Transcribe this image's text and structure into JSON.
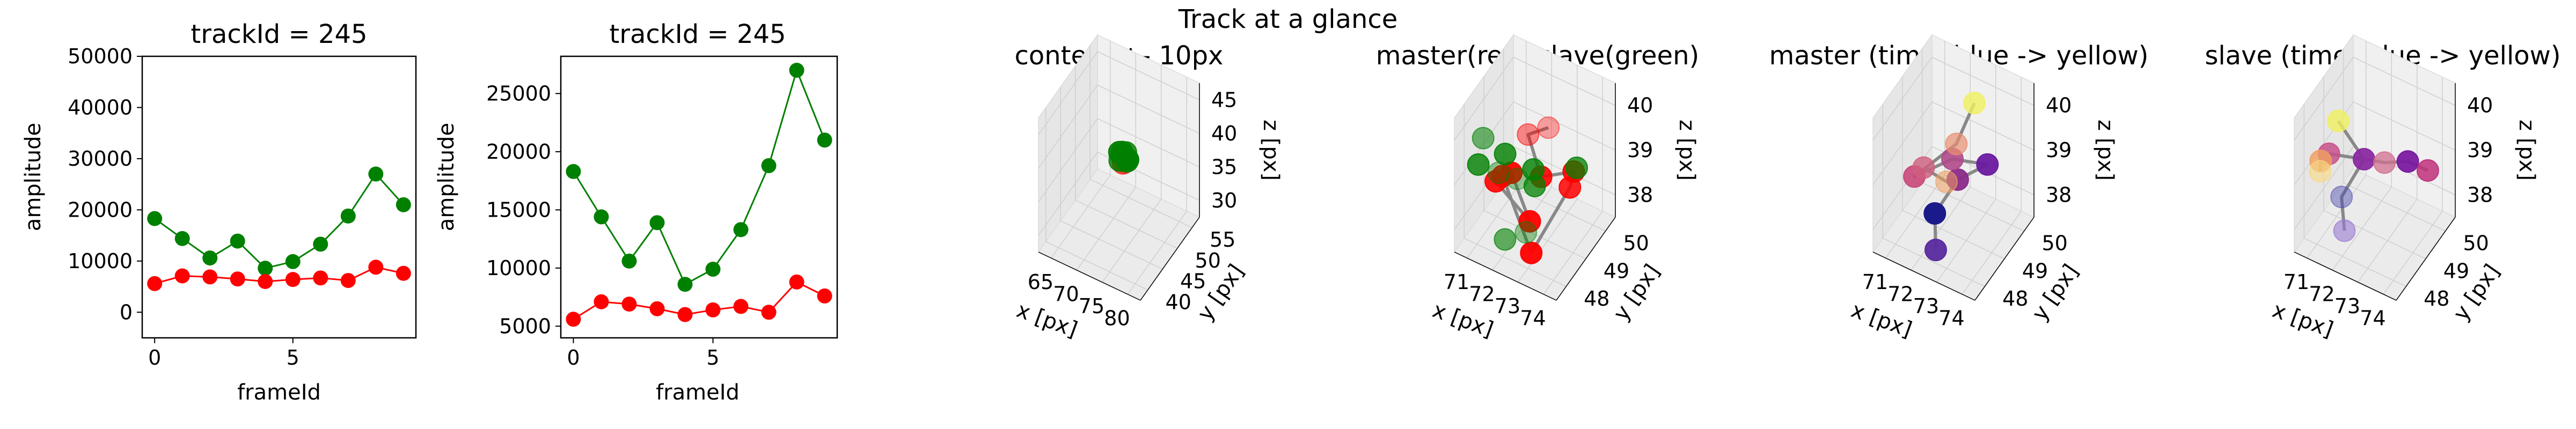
{
  "figure": {
    "suptitle": "Track at a glance"
  },
  "colors": {
    "master": "#ff0000",
    "slave": "#008000",
    "track_line": "#888888",
    "pane_back": "#f0f0f0",
    "pane_side": "#e6e6e6",
    "pane_floor": "#ebebeb"
  },
  "chart_data": [
    {
      "type": "line",
      "title": "trackId = 245",
      "xlabel": "frameId",
      "ylabel": "amplitude",
      "xlim": [
        -0.45,
        9.45
      ],
      "ylim": [
        -5000,
        50000
      ],
      "xticks": [
        0,
        5
      ],
      "yticks": [
        0,
        10000,
        20000,
        30000,
        40000,
        50000
      ],
      "x": [
        0,
        1,
        2,
        3,
        4,
        5,
        6,
        7,
        8,
        9
      ],
      "series": [
        {
          "color": "#008000",
          "values": [
            18300,
            14400,
            10600,
            13900,
            8600,
            9900,
            13300,
            18800,
            27000,
            21000
          ]
        },
        {
          "color": "#ff0000",
          "values": [
            5600,
            7100,
            6900,
            6500,
            6000,
            6400,
            6700,
            6200,
            8800,
            7600
          ]
        }
      ]
    },
    {
      "type": "line",
      "title": "trackId = 245",
      "xlabel": "frameId",
      "ylabel": "amplitude",
      "xlim": [
        -0.45,
        9.45
      ],
      "ylim": [
        4000,
        28200
      ],
      "xticks": [
        0,
        5
      ],
      "yticks": [
        5000,
        10000,
        15000,
        20000,
        25000
      ],
      "x": [
        0,
        1,
        2,
        3,
        4,
        5,
        6,
        7,
        8,
        9
      ],
      "series": [
        {
          "color": "#008000",
          "values": [
            18300,
            14400,
            10600,
            13900,
            8600,
            9900,
            13300,
            18800,
            27000,
            21000
          ]
        },
        {
          "color": "#ff0000",
          "values": [
            5600,
            7100,
            6900,
            6500,
            6000,
            6400,
            6700,
            6200,
            8800,
            7600
          ]
        }
      ]
    },
    {
      "type": "scatter3d",
      "title": "context +- 10px",
      "xlabel": "x [px]",
      "ylabel": "y [px]",
      "zlabel": "z [px]",
      "xlim": [
        62,
        82
      ],
      "ylim": [
        38,
        58
      ],
      "zlim": [
        28,
        48
      ],
      "xticks": [
        "65",
        "70",
        "75",
        "80"
      ],
      "yticks": [
        "40",
        "45",
        "50",
        "55"
      ],
      "zticks": [
        "30",
        "35",
        "40",
        "45"
      ],
      "points": [
        {
          "x": 72,
          "y": 49,
          "z": 39,
          "c": "#ff0000",
          "a": 0.85
        },
        {
          "x": 72.5,
          "y": 48.5,
          "z": 38.5,
          "c": "#ff0000",
          "a": 0.6
        },
        {
          "x": 72.2,
          "y": 49.5,
          "z": 38,
          "c": "#d23c14",
          "a": 0.9
        },
        {
          "x": 71.5,
          "y": 49,
          "z": 39.5,
          "c": "#008000",
          "a": 0.9
        },
        {
          "x": 73,
          "y": 49,
          "z": 39,
          "c": "#008000",
          "a": 0.9
        },
        {
          "x": 72.5,
          "y": 49.5,
          "z": 39.5,
          "c": "#008000",
          "a": 0.8
        },
        {
          "x": 71.8,
          "y": 48.6,
          "z": 38.6,
          "c": "#008000",
          "a": 0.8
        },
        {
          "x": 73.4,
          "y": 48.4,
          "z": 39.2,
          "c": "#008000",
          "a": 0.9
        },
        {
          "x": 72.8,
          "y": 49.7,
          "z": 38.4,
          "c": "#008000",
          "a": 0.9
        },
        {
          "x": 72.1,
          "y": 48.9,
          "z": 39.8,
          "c": "#008000",
          "a": 0.9
        }
      ],
      "lines": [
        [
          0,
          3,
          5,
          1
        ]
      ]
    },
    {
      "type": "scatter3d",
      "title": "master(red) slave(green)",
      "xlabel": "x [px]",
      "ylabel": "y [px]",
      "zlabel": "z [px]",
      "xlim": [
        70.3,
        74.5
      ],
      "ylim": [
        47.5,
        50.5
      ],
      "zlim": [
        37.6,
        40.4
      ],
      "xticks": [
        "71",
        "72",
        "73",
        "74"
      ],
      "yticks": [
        "48",
        "49",
        "50"
      ],
      "zticks": [
        "38",
        "39",
        "40"
      ],
      "points": [
        {
          "x": 73.2,
          "y": 48.7,
          "z": 40.2,
          "c": "#ff0000",
          "a": 0.35
        },
        {
          "x": 72.2,
          "y": 48.9,
          "z": 39.7,
          "c": "#ff0000",
          "a": 0.45
        },
        {
          "x": 71.8,
          "y": 48.1,
          "z": 39.2,
          "c": "#ff0000",
          "a": 0.9
        },
        {
          "x": 72.9,
          "y": 48.7,
          "z": 39.1,
          "c": "#ff0000",
          "a": 0.9
        },
        {
          "x": 74.0,
          "y": 49.0,
          "z": 39.3,
          "c": "#ff0000",
          "a": 0.9
        },
        {
          "x": 73.6,
          "y": 49.3,
          "z": 38.7,
          "c": "#ff0000",
          "a": 0.85
        },
        {
          "x": 71.6,
          "y": 48.0,
          "z": 39.1,
          "c": "#ff0000",
          "a": 0.9
        },
        {
          "x": 72.9,
          "y": 48.2,
          "z": 37.8,
          "c": "#ff0000",
          "a": 0.95
        },
        {
          "x": 73.0,
          "y": 48.0,
          "z": 38.6,
          "c": "#ff0000",
          "a": 0.95
        },
        {
          "x": 72.0,
          "y": 48.3,
          "z": 39.2,
          "c": "#ff0000",
          "a": 0.95
        },
        {
          "x": 71.0,
          "y": 48.1,
          "z": 39.8,
          "c": "#008000",
          "a": 0.55
        },
        {
          "x": 70.8,
          "y": 48.1,
          "z": 39.2,
          "c": "#008000",
          "a": 0.8
        },
        {
          "x": 71.5,
          "y": 48.6,
          "z": 39.3,
          "c": "#008000",
          "a": 0.8
        },
        {
          "x": 71.4,
          "y": 48.4,
          "z": 39.0,
          "c": "#008000",
          "a": 0.4
        },
        {
          "x": 72.0,
          "y": 48.6,
          "z": 38.9,
          "c": "#008000",
          "a": 0.35
        },
        {
          "x": 72.8,
          "y": 48.5,
          "z": 39.0,
          "c": "#008000",
          "a": 0.75
        },
        {
          "x": 73.8,
          "y": 49.4,
          "z": 39.1,
          "c": "#008000",
          "a": 0.75
        },
        {
          "x": 72.5,
          "y": 48.8,
          "z": 39.1,
          "c": "#008000",
          "a": 0.8
        },
        {
          "x": 72.6,
          "y": 48.3,
          "z": 38.1,
          "c": "#008000",
          "a": 0.4
        },
        {
          "x": 71.9,
          "y": 48.1,
          "z": 37.9,
          "c": "#008000",
          "a": 0.6
        }
      ],
      "lines": [
        [
          0,
          1,
          3,
          4,
          5,
          7
        ],
        [
          2,
          6,
          8,
          9
        ],
        [
          7,
          2
        ]
      ]
    },
    {
      "type": "scatter3d",
      "title": "master (time: blue -> yellow)",
      "xlabel": "x [px]",
      "ylabel": "y [px]",
      "zlabel": "z [px]",
      "xlim": [
        70.3,
        74.5
      ],
      "ylim": [
        47.5,
        50.5
      ],
      "zlim": [
        37.6,
        40.4
      ],
      "xticks": [
        "71",
        "72",
        "73",
        "74"
      ],
      "yticks": [
        "48",
        "49",
        "50"
      ],
      "zticks": [
        "38",
        "39",
        "40"
      ],
      "points": [
        {
          "x": 72.2,
          "y": 48.3,
          "z": 38.4,
          "c": "#1a1a8a",
          "a": 1
        },
        {
          "x": 72.4,
          "y": 48.1,
          "z": 37.8,
          "c": "#5a2aa0",
          "a": 0.95
        },
        {
          "x": 73.8,
          "y": 49.0,
          "z": 39.4,
          "c": "#6a1aa0",
          "a": 0.95
        },
        {
          "x": 72.9,
          "y": 48.6,
          "z": 39.1,
          "c": "#8a2a8a",
          "a": 0.95
        },
        {
          "x": 72.6,
          "y": 48.7,
          "z": 39.4,
          "c": "#b04a8a",
          "a": 0.9
        },
        {
          "x": 71.6,
          "y": 48.0,
          "z": 39.2,
          "c": "#c8487a",
          "a": 0.9
        },
        {
          "x": 72.6,
          "y": 48.9,
          "z": 39.6,
          "c": "#e89070",
          "a": 0.7
        },
        {
          "x": 71.9,
          "y": 48.1,
          "z": 39.4,
          "c": "#d06080",
          "a": 0.8
        },
        {
          "x": 72.6,
          "y": 48.4,
          "z": 39.1,
          "c": "#f0a060",
          "a": 0.55
        },
        {
          "x": 73.1,
          "y": 49.2,
          "z": 40.4,
          "c": "#f0f060",
          "a": 0.8
        }
      ],
      "lines": [
        [
          1,
          0,
          3,
          2,
          4,
          5,
          6,
          9
        ],
        [
          7,
          8,
          3
        ]
      ]
    },
    {
      "type": "scatter3d",
      "title": "slave (time: blue -> yellow)",
      "xlabel": "x [px]",
      "ylabel": "y [px]",
      "zlabel": "z [px]",
      "xlim": [
        70.3,
        74.5
      ],
      "ylim": [
        47.5,
        50.5
      ],
      "zlim": [
        37.6,
        40.4
      ],
      "xticks": [
        "71",
        "72",
        "73",
        "74"
      ],
      "yticks": [
        "48",
        "49",
        "50"
      ],
      "zticks": [
        "38",
        "39",
        "40"
      ],
      "points": [
        {
          "x": 71.6,
          "y": 48.3,
          "z": 38.6,
          "c": "#4a4ab0",
          "a": 0.45
        },
        {
          "x": 71.8,
          "y": 48.2,
          "z": 38.0,
          "c": "#9a7ad0",
          "a": 0.6
        },
        {
          "x": 73.6,
          "y": 49.2,
          "z": 39.3,
          "c": "#7a1aa0",
          "a": 0.95
        },
        {
          "x": 72.2,
          "y": 48.7,
          "z": 39.3,
          "c": "#8a2aa0",
          "a": 0.95
        },
        {
          "x": 74.1,
          "y": 49.6,
          "z": 39.0,
          "c": "#c0307a",
          "a": 0.85
        },
        {
          "x": 71.0,
          "y": 48.4,
          "z": 39.3,
          "c": "#c8508a",
          "a": 0.85
        },
        {
          "x": 72.8,
          "y": 49.0,
          "z": 39.2,
          "c": "#d07090",
          "a": 0.75
        },
        {
          "x": 70.9,
          "y": 48.1,
          "z": 39.3,
          "c": "#f0a060",
          "a": 0.8
        },
        {
          "x": 70.8,
          "y": 48.2,
          "z": 39.0,
          "c": "#f8d880",
          "a": 0.6
        },
        {
          "x": 71.3,
          "y": 48.5,
          "z": 40.0,
          "c": "#f0f060",
          "a": 0.8
        }
      ],
      "lines": [
        [
          1,
          0,
          3,
          6,
          2,
          4
        ],
        [
          5,
          3,
          9
        ],
        [
          7,
          8
        ]
      ]
    }
  ]
}
